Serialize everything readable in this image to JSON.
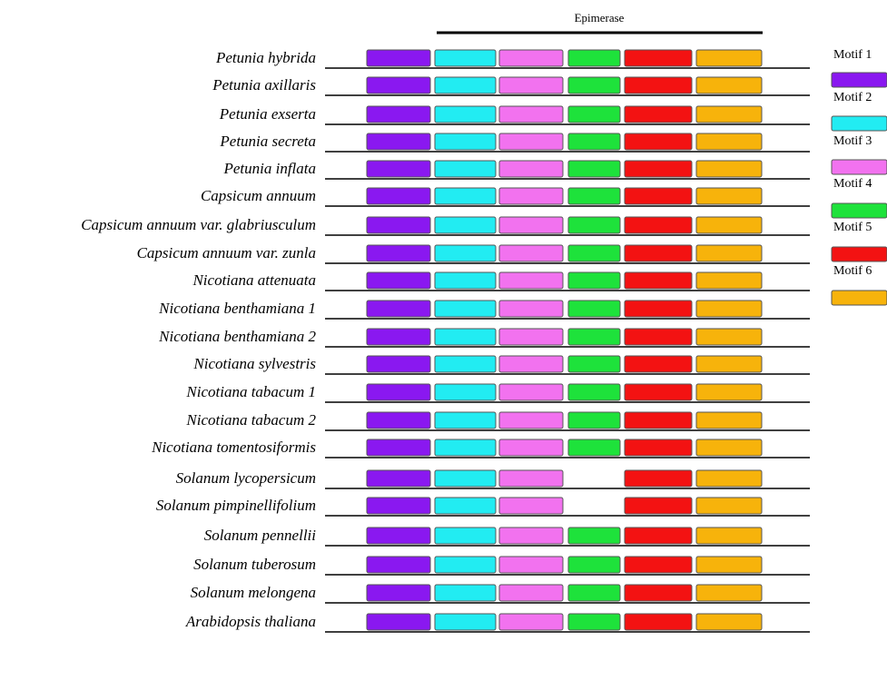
{
  "domain_annotation": {
    "label": "Epimerase"
  },
  "motifs": [
    {
      "id": 1,
      "label": "Motif 1",
      "color": "#8a18f0"
    },
    {
      "id": 2,
      "label": "Motif 2",
      "color": "#22ecf2"
    },
    {
      "id": 3,
      "label": "Motif 3",
      "color": "#f272ef"
    },
    {
      "id": 4,
      "label": "Motif 4",
      "color": "#1ee23b"
    },
    {
      "id": 5,
      "label": "Motif 5",
      "color": "#f31212"
    },
    {
      "id": 6,
      "label": "Motif 6",
      "color": "#f7b30b"
    }
  ],
  "species": [
    {
      "name": "Petunia hybrida",
      "motifs": [
        1,
        2,
        3,
        4,
        5,
        6
      ]
    },
    {
      "name": "Petunia axillaris",
      "motifs": [
        1,
        2,
        3,
        4,
        5,
        6
      ]
    },
    {
      "name": "Petunia exserta",
      "motifs": [
        1,
        2,
        3,
        4,
        5,
        6
      ]
    },
    {
      "name": "Petunia secreta",
      "motifs": [
        1,
        2,
        3,
        4,
        5,
        6
      ]
    },
    {
      "name": "Petunia inflata",
      "motifs": [
        1,
        2,
        3,
        4,
        5,
        6
      ]
    },
    {
      "name": "Capsicum annuum",
      "motifs": [
        1,
        2,
        3,
        4,
        5,
        6
      ]
    },
    {
      "name": "Capsicum annuum var. glabriusculum",
      "motifs": [
        1,
        2,
        3,
        4,
        5,
        6
      ]
    },
    {
      "name": "Capsicum annuum var. zunla",
      "motifs": [
        1,
        2,
        3,
        4,
        5,
        6
      ]
    },
    {
      "name": "Nicotiana attenuata",
      "motifs": [
        1,
        2,
        3,
        4,
        5,
        6
      ]
    },
    {
      "name": "Nicotiana benthamiana 1",
      "motifs": [
        1,
        2,
        3,
        4,
        5,
        6
      ]
    },
    {
      "name": "Nicotiana benthamiana 2",
      "motifs": [
        1,
        2,
        3,
        4,
        5,
        6
      ]
    },
    {
      "name": "Nicotiana sylvestris",
      "motifs": [
        1,
        2,
        3,
        4,
        5,
        6
      ]
    },
    {
      "name": "Nicotiana tabacum 1",
      "motifs": [
        1,
        2,
        3,
        4,
        5,
        6
      ]
    },
    {
      "name": "Nicotiana tabacum 2",
      "motifs": [
        1,
        2,
        3,
        4,
        5,
        6
      ]
    },
    {
      "name": "Nicotiana tomentosiformis",
      "motifs": [
        1,
        2,
        3,
        4,
        5,
        6
      ]
    },
    {
      "name": "Solanum lycopersicum",
      "motifs": [
        1,
        2,
        3,
        5,
        6
      ]
    },
    {
      "name": "Solanum pimpinellifolium",
      "motifs": [
        1,
        2,
        3,
        5,
        6
      ]
    },
    {
      "name": "Solanum pennellii",
      "motifs": [
        1,
        2,
        3,
        4,
        5,
        6
      ]
    },
    {
      "name": "Solanum tuberosum",
      "motifs": [
        1,
        2,
        3,
        4,
        5,
        6
      ]
    },
    {
      "name": "Solanum melongena",
      "motifs": [
        1,
        2,
        3,
        4,
        5,
        6
      ]
    },
    {
      "name": "Arabidopsis thaliana",
      "motifs": [
        1,
        2,
        3,
        4,
        5,
        6
      ]
    }
  ]
}
